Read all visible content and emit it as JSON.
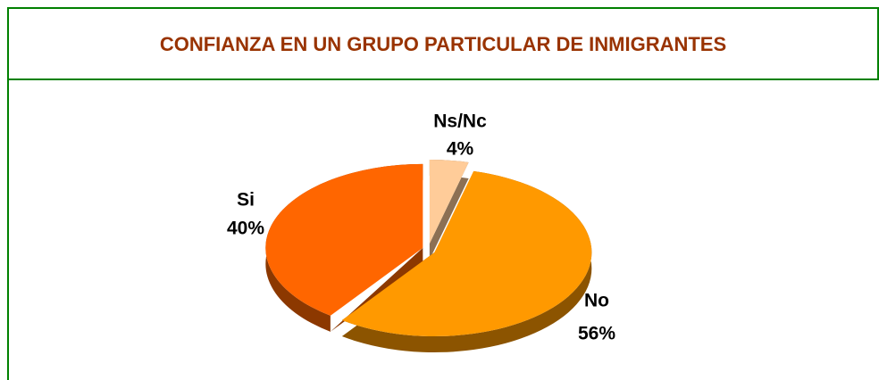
{
  "chart_data": {
    "type": "pie",
    "title": "CONFIANZA EN UN GRUPO PARTICULAR DE INMIGRANTES",
    "categories": [
      "Ns/Nc",
      "No",
      "Si"
    ],
    "values": [
      4,
      56,
      40
    ],
    "value_labels": [
      "4%",
      "56%",
      "40%"
    ],
    "colors": [
      "#ffcc99",
      "#ff9900",
      "#ff6600"
    ]
  }
}
